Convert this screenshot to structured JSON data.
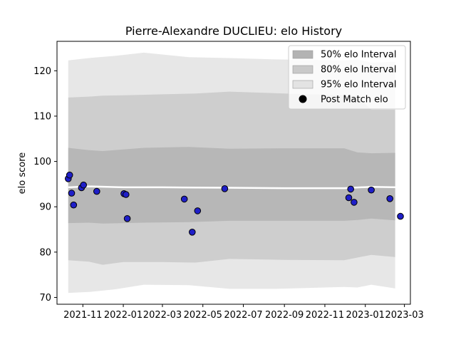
{
  "chart_data": {
    "type": "scatter",
    "title": "Pierre-Alexandre DUCLIEU: elo History",
    "xlabel": "",
    "ylabel": "elo score",
    "xlim": [
      "2021-09-23",
      "2023-03-10"
    ],
    "ylim": [
      68.5,
      126.5
    ],
    "x_ticks": [
      {
        "date": "2021-11-01",
        "label": "2021-11"
      },
      {
        "date": "2022-01-01",
        "label": "2022-01"
      },
      {
        "date": "2022-03-01",
        "label": "2022-03"
      },
      {
        "date": "2022-05-01",
        "label": "2022-05"
      },
      {
        "date": "2022-07-01",
        "label": "2022-07"
      },
      {
        "date": "2022-09-01",
        "label": "2022-09"
      },
      {
        "date": "2022-11-01",
        "label": "2022-11"
      },
      {
        "date": "2023-01-01",
        "label": "2023-01"
      },
      {
        "date": "2023-03-01",
        "label": "2023-03"
      }
    ],
    "y_ticks": [
      70,
      80,
      90,
      100,
      110,
      120
    ],
    "legend": {
      "placement": "top-right",
      "entries": [
        {
          "key": "band50",
          "label": "50% elo Interval"
        },
        {
          "key": "band80",
          "label": "80% elo Interval"
        },
        {
          "key": "band95",
          "label": "95% elo Interval"
        },
        {
          "key": "points",
          "label": "Post Match elo"
        }
      ]
    },
    "colors": {
      "band50": "#b3b3b3",
      "band80": "#c9c9c9",
      "band95": "#e3e3e3",
      "point_fill": "#1f1fc8",
      "point_edge": "#000000",
      "mean_line": "#ffffff"
    },
    "bands": {
      "band95": {
        "x": [
          "2021-10-10",
          "2021-11-10",
          "2021-12-20",
          "2022-02-01",
          "2022-04-10",
          "2022-06-10",
          "2022-08-20",
          "2022-11-30",
          "2022-12-20",
          "2023-01-10",
          "2023-02-15"
        ],
        "upper": [
          122.3,
          122.8,
          123.3,
          124.0,
          123.0,
          122.8,
          122.5,
          122.3,
          122.5,
          121.8,
          122.0
        ],
        "lower": [
          71.0,
          71.2,
          71.8,
          72.8,
          72.7,
          71.9,
          71.9,
          72.3,
          72.2,
          72.8,
          72.0
        ]
      },
      "band80": {
        "x": [
          "2021-10-10",
          "2021-11-10",
          "2021-12-01",
          "2022-01-01",
          "2022-03-01",
          "2022-04-20",
          "2022-06-10",
          "2022-09-01",
          "2022-11-30",
          "2022-12-20",
          "2023-01-10",
          "2023-02-15"
        ],
        "upper": [
          114.1,
          114.3,
          114.5,
          114.6,
          114.8,
          115.0,
          115.4,
          115.0,
          114.6,
          114.5,
          111.4,
          111.4
        ],
        "lower": [
          78.2,
          77.9,
          77.2,
          77.8,
          77.8,
          77.7,
          78.5,
          78.3,
          78.2,
          78.8,
          79.4,
          78.9
        ]
      },
      "band50": {
        "x": [
          "2021-10-10",
          "2021-11-10",
          "2021-12-01",
          "2022-02-01",
          "2022-04-10",
          "2022-06-10",
          "2022-09-01",
          "2022-11-30",
          "2022-12-20",
          "2023-01-10",
          "2023-02-15"
        ],
        "upper": [
          103.0,
          102.5,
          102.3,
          103.0,
          103.2,
          102.8,
          102.9,
          102.9,
          102.0,
          101.8,
          101.9
        ],
        "lower": [
          86.4,
          86.5,
          86.3,
          86.5,
          86.6,
          86.9,
          86.9,
          86.9,
          87.1,
          87.4,
          87.0
        ]
      }
    },
    "mean_line": {
      "x": [
        "2021-10-10",
        "2021-11-10",
        "2022-01-01",
        "2022-03-01",
        "2022-06-10",
        "2022-09-01",
        "2022-11-30",
        "2023-01-10",
        "2023-02-20"
      ],
      "y": [
        94.3,
        94.5,
        94.3,
        94.3,
        94.2,
        94.1,
        94.1,
        94.4,
        94.3
      ]
    },
    "points": [
      {
        "x": "2021-10-10",
        "y": 96.2
      },
      {
        "x": "2021-10-12",
        "y": 97.0
      },
      {
        "x": "2021-10-15",
        "y": 93.0
      },
      {
        "x": "2021-10-18",
        "y": 90.4
      },
      {
        "x": "2021-10-30",
        "y": 94.2
      },
      {
        "x": "2021-11-02",
        "y": 94.8
      },
      {
        "x": "2021-11-22",
        "y": 93.4
      },
      {
        "x": "2022-01-02",
        "y": 92.9
      },
      {
        "x": "2022-01-05",
        "y": 92.7
      },
      {
        "x": "2022-01-07",
        "y": 87.4
      },
      {
        "x": "2022-04-03",
        "y": 91.7
      },
      {
        "x": "2022-04-15",
        "y": 84.4
      },
      {
        "x": "2022-04-23",
        "y": 89.1
      },
      {
        "x": "2022-06-03",
        "y": 94.0
      },
      {
        "x": "2022-12-07",
        "y": 92.0
      },
      {
        "x": "2022-12-10",
        "y": 93.9
      },
      {
        "x": "2022-12-15",
        "y": 91.0
      },
      {
        "x": "2023-01-10",
        "y": 93.7
      },
      {
        "x": "2023-02-07",
        "y": 91.8
      },
      {
        "x": "2023-02-23",
        "y": 87.9
      }
    ]
  }
}
